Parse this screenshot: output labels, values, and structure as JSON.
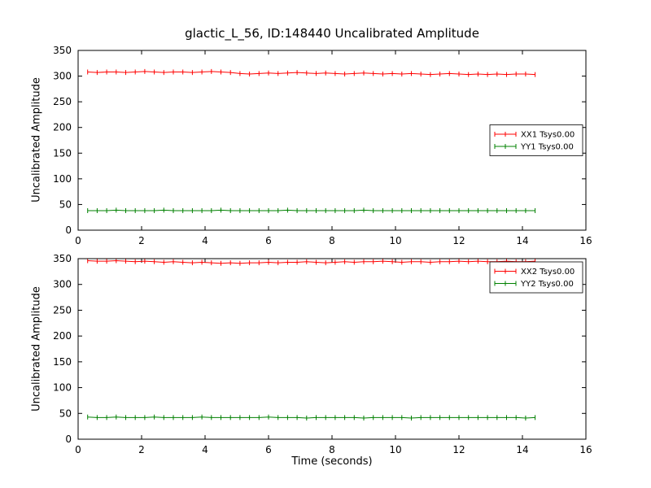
{
  "figure": {
    "title": "glactic_L_56, ID:148440 Uncalibrated Amplitude",
    "bg": "#ffffff"
  },
  "chart_data": [
    {
      "type": "line",
      "title": "glactic_L_56, ID:148440 Uncalibrated Amplitude",
      "xlabel": "",
      "ylabel": "Uncalibrated Amplitude",
      "xlim": [
        0,
        16
      ],
      "ylim": [
        0,
        350
      ],
      "xticks": [
        0,
        2,
        4,
        6,
        8,
        10,
        12,
        14,
        16
      ],
      "yticks": [
        0,
        50,
        100,
        150,
        200,
        250,
        300,
        350
      ],
      "grid": false,
      "legend_loc": "center-right",
      "marker": "errorbar-tick",
      "x": [
        0.3,
        0.6,
        0.9,
        1.2,
        1.5,
        1.8,
        2.1,
        2.4,
        2.7,
        3.0,
        3.3,
        3.6,
        3.9,
        4.2,
        4.5,
        4.8,
        5.1,
        5.4,
        5.7,
        6.0,
        6.3,
        6.6,
        6.9,
        7.2,
        7.5,
        7.8,
        8.1,
        8.4,
        8.7,
        9.0,
        9.3,
        9.6,
        9.9,
        10.2,
        10.5,
        10.8,
        11.1,
        11.4,
        11.7,
        12.0,
        12.3,
        12.6,
        12.9,
        13.2,
        13.5,
        13.8,
        14.1,
        14.4
      ],
      "series": [
        {
          "name": "XX1 Tsys0.00",
          "color": "#ff0000",
          "values": [
            308,
            307,
            308,
            308,
            307,
            308,
            309,
            308,
            307,
            308,
            308,
            307,
            308,
            309,
            308,
            307,
            305,
            304,
            305,
            306,
            305,
            306,
            307,
            306,
            305,
            306,
            305,
            304,
            305,
            306,
            305,
            304,
            305,
            304,
            305,
            304,
            303,
            304,
            305,
            304,
            303,
            304,
            303,
            304,
            303,
            304,
            304,
            303
          ]
        },
        {
          "name": "YY1 Tsys0.00",
          "color": "#008000",
          "values": [
            38,
            38,
            38,
            39,
            38,
            38,
            38,
            38,
            39,
            38,
            38,
            38,
            38,
            38,
            39,
            38,
            38,
            38,
            38,
            38,
            38,
            39,
            38,
            38,
            38,
            38,
            38,
            38,
            38,
            39,
            38,
            38,
            38,
            38,
            38,
            38,
            38,
            38,
            38,
            38,
            38,
            38,
            38,
            38,
            38,
            38,
            38,
            38
          ]
        }
      ]
    },
    {
      "type": "line",
      "title": "",
      "xlabel": "Time (seconds)",
      "ylabel": "Uncalibrated Amplitude",
      "xlim": [
        0,
        16
      ],
      "ylim": [
        0,
        350
      ],
      "xticks": [
        0,
        2,
        4,
        6,
        8,
        10,
        12,
        14,
        16
      ],
      "yticks": [
        0,
        50,
        100,
        150,
        200,
        250,
        300,
        350
      ],
      "grid": false,
      "legend_loc": "upper-right",
      "marker": "errorbar-tick",
      "x": [
        0.3,
        0.6,
        0.9,
        1.2,
        1.5,
        1.8,
        2.1,
        2.4,
        2.7,
        3.0,
        3.3,
        3.6,
        3.9,
        4.2,
        4.5,
        4.8,
        5.1,
        5.4,
        5.7,
        6.0,
        6.3,
        6.6,
        6.9,
        7.2,
        7.5,
        7.8,
        8.1,
        8.4,
        8.7,
        9.0,
        9.3,
        9.6,
        9.9,
        10.2,
        10.5,
        10.8,
        11.1,
        11.4,
        11.7,
        12.0,
        12.3,
        12.6,
        12.9,
        13.2,
        13.5,
        13.8,
        14.1,
        14.4
      ],
      "series": [
        {
          "name": "XX2 Tsys0.00",
          "color": "#ff0000",
          "values": [
            346,
            345,
            345,
            346,
            345,
            344,
            345,
            344,
            343,
            344,
            343,
            342,
            343,
            342,
            341,
            342,
            341,
            342,
            342,
            343,
            342,
            343,
            343,
            344,
            343,
            342,
            343,
            344,
            343,
            344,
            344,
            345,
            344,
            343,
            344,
            344,
            343,
            344,
            344,
            345,
            344,
            345,
            344,
            344,
            345,
            344,
            344,
            345
          ]
        },
        {
          "name": "YY2 Tsys0.00",
          "color": "#008000",
          "values": [
            43,
            42,
            42,
            43,
            42,
            42,
            42,
            43,
            42,
            42,
            42,
            42,
            43,
            42,
            42,
            42,
            42,
            42,
            42,
            43,
            42,
            42,
            42,
            41,
            42,
            42,
            42,
            42,
            42,
            41,
            42,
            42,
            42,
            42,
            41,
            42,
            42,
            42,
            42,
            42,
            42,
            42,
            42,
            42,
            42,
            42,
            41,
            42
          ]
        }
      ]
    }
  ]
}
